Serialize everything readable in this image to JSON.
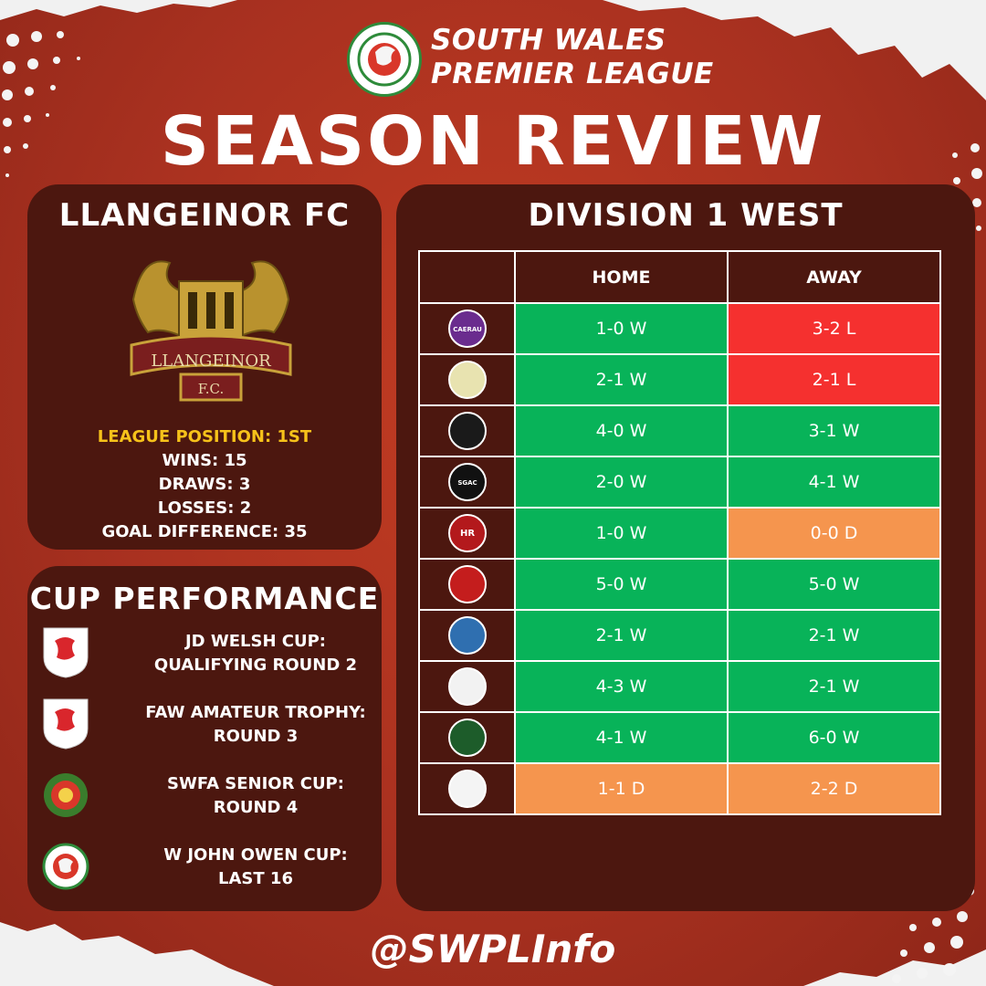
{
  "header": {
    "league_line1": "SOUTH WALES",
    "league_line2": "PREMIER LEAGUE",
    "title": "SEASON REVIEW"
  },
  "club_panel": {
    "club_name": "LLANGEINOR FC",
    "crest_text": "LLANGEINOR",
    "crest_subtext": "F.C.",
    "league_position": "LEAGUE POSITION: 1ST",
    "wins": "WINS: 15",
    "draws": "DRAWS: 3",
    "losses": "LOSSES: 2",
    "goal_difference": "GOAL DIFFERENCE: 35"
  },
  "cup_panel": {
    "title": "CUP PERFORMANCE",
    "cups": [
      {
        "name": "JD WELSH CUP:",
        "result": "QUALIFYING ROUND 2",
        "badge": "faw-dragon-icon"
      },
      {
        "name": "FAW AMATEUR TROPHY:",
        "result": "ROUND 3",
        "badge": "faw-dragon-icon"
      },
      {
        "name": "SWFA SENIOR CUP:",
        "result": "ROUND 4",
        "badge": "swfa-badge-icon"
      },
      {
        "name": "W JOHN OWEN CUP:",
        "result": "LAST 16",
        "badge": "swpl-badge-icon"
      }
    ]
  },
  "division_panel": {
    "title": "DIVISION 1 WEST",
    "col_home": "HOME",
    "col_away": "AWAY",
    "rows": [
      {
        "home": "1-0 W",
        "home_outcome": "W",
        "away": "3-2 L",
        "away_outcome": "L",
        "badge_color": "#6a2c8e",
        "badge_text": "CAERAU"
      },
      {
        "home": "2-1 W",
        "home_outcome": "W",
        "away": "2-1 L",
        "away_outcome": "L",
        "badge_color": "#e8e3b0",
        "badge_text": ""
      },
      {
        "home": "4-0 W",
        "home_outcome": "W",
        "away": "3-1 W",
        "away_outcome": "W",
        "badge_color": "#1a1a1a",
        "badge_text": ""
      },
      {
        "home": "2-0 W",
        "home_outcome": "W",
        "away": "4-1 W",
        "away_outcome": "W",
        "badge_color": "#111111",
        "badge_text": "SGAC"
      },
      {
        "home": "1-0 W",
        "home_outcome": "W",
        "away": "0-0 D",
        "away_outcome": "D",
        "badge_color": "#b3191c",
        "badge_text": "HR"
      },
      {
        "home": "5-0 W",
        "home_outcome": "W",
        "away": "5-0 W",
        "away_outcome": "W",
        "badge_color": "#c41d1d",
        "badge_text": ""
      },
      {
        "home": "2-1 W",
        "home_outcome": "W",
        "away": "2-1 W",
        "away_outcome": "W",
        "badge_color": "#2f6fb0",
        "badge_text": ""
      },
      {
        "home": "4-3 W",
        "home_outcome": "W",
        "away": "2-1 W",
        "away_outcome": "W",
        "badge_color": "#f2f2f2",
        "badge_text": ""
      },
      {
        "home": "4-1 W",
        "home_outcome": "W",
        "away": "6-0 W",
        "away_outcome": "W",
        "badge_color": "#1d5c2a",
        "badge_text": ""
      },
      {
        "home": "1-1 D",
        "home_outcome": "D",
        "away": "2-2 D",
        "away_outcome": "D",
        "badge_color": "#f4f4f4",
        "badge_text": ""
      }
    ]
  },
  "footer": {
    "handle": "@SWPLInfo"
  },
  "colors": {
    "background": "#a93120",
    "panel": "#4c170f",
    "win": "#08b359",
    "loss": "#f5302f",
    "draw": "#f5954e",
    "gold": "#f6c21a"
  }
}
